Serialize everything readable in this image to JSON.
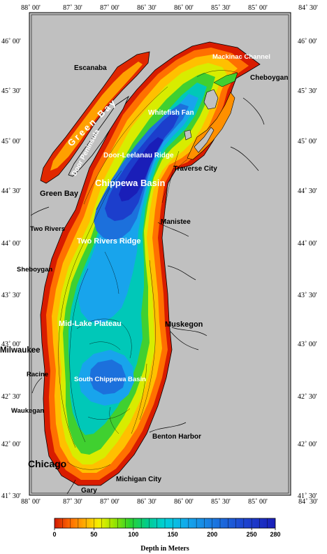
{
  "map": {
    "top_lon_labels": [
      "88˚ 00'",
      "87˚ 30'",
      "87˚ 00'",
      "86˚ 30'",
      "86˚ 00'",
      "85˚ 30'",
      "85˚ 00'",
      "84˚ 30'"
    ],
    "bottom_lon_labels": [
      "88˚ 00'",
      "87˚ 30'",
      "87˚ 00'",
      "86˚ 30'",
      "86˚ 00'",
      "85˚ 30'",
      "85˚ 00'",
      "84˚ 30'"
    ],
    "left_lat_labels": [
      "46˚ 00'",
      "45˚ 30'",
      "45˚ 00'",
      "44˚ 30'",
      "44˚ 00'",
      "43˚ 30'",
      "43˚ 00'",
      "42˚ 30'",
      "42˚ 00'",
      "41˚ 30'"
    ],
    "right_lat_labels": [
      "46˚ 00'",
      "45˚ 30'",
      "45˚ 00'",
      "44˚ 30'",
      "44˚ 00'",
      "43˚ 30'",
      "43˚ 00'",
      "42˚ 30'",
      "42˚ 00'",
      "41˚ 30'"
    ],
    "places": {
      "escanaba": "Escanaba",
      "green_bay_city": "Green Bay",
      "two_rivers": "Two Rivers",
      "sheboygan": "Sheboygan",
      "milwaukee": "Milwaukee",
      "racine": "Racine",
      "waukegan": "Waukegan",
      "chicago": "Chicago",
      "gary": "Gary",
      "michigan_city": "Michigan City",
      "benton_harbor": "Benton Harbor",
      "muskegon": "Muskegon",
      "manistee": "Manistee",
      "traverse_city": "Traverse City",
      "cheboygan": "Cheboygan",
      "mackinac_channel": "Mackinac Channel",
      "door_peninsula": "Door Peninsula",
      "green_bay_water": "Green Bay"
    },
    "features": {
      "whitefish_fan": "Whitefish Fan",
      "door_leelanau_ridge": "Door-Leelanau Ridge",
      "chippewa_basin": "Chippewa Basin",
      "two_rivers_ridge": "Two Rivers Ridge",
      "mid_lake_plateau": "Mid-Lake Plateau",
      "south_chippewa_basin": "South Chippewa Basin"
    }
  },
  "legend": {
    "title": "Depth in Meters",
    "ticks": [
      "0",
      "50",
      "100",
      "150",
      "200",
      "250",
      "280"
    ],
    "tick_values": [
      0,
      50,
      100,
      150,
      200,
      250,
      280
    ],
    "max_depth": 280
  },
  "colors": {
    "land": "#c0c0c0",
    "shallow": "#e02000",
    "deep": "#1818c8"
  }
}
